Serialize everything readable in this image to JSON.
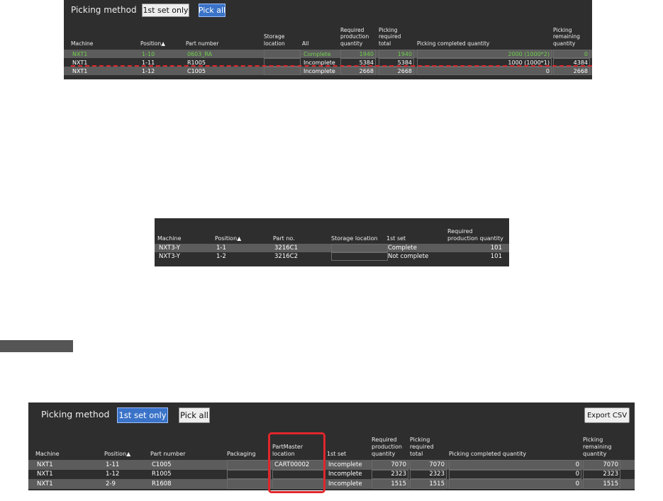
{
  "panels": [
    {
      "picking_method": "Picking method",
      "buttons": [
        "1st set only",
        "Pick all"
      ],
      "columns": [
        "Machine",
        "Position▲",
        "Part number",
        "Storage location",
        "All",
        "Required production quantity",
        "Picking required total",
        "Picking completed quantity",
        "Picking remaining quantity"
      ],
      "rows": [
        [
          "NXT1",
          "1-10",
          "0603_RA",
          null,
          "Complete",
          "1940",
          "1940",
          "2000 (1000*2)",
          "0"
        ],
        [
          "NXT1",
          "1-11",
          "R1005",
          null,
          "Incomplete",
          "5384",
          "5384",
          "1000 (1000*1)",
          "4384"
        ],
        [
          "NXT1",
          "1-12",
          "C1005",
          null,
          "Incomplete",
          "2668",
          "2668",
          "0",
          "2668"
        ]
      ]
    },
    {
      "columns": [
        "Machine",
        "Position▲",
        "Part no.",
        "Storage location",
        "1st set",
        "Required production quantity"
      ],
      "rows": [
        [
          "NXT3-Y",
          "1-1",
          "3216C1",
          null,
          "Complete",
          "101"
        ],
        [
          "NXT3-Y",
          "1-2",
          "3216C2",
          null,
          "Not complete",
          "101"
        ]
      ]
    },
    {
      "picking_method": "Picking method",
      "buttons": [
        "1st set only",
        "Pick all"
      ],
      "export_button": "Export CSV",
      "columns": [
        "Machine",
        "Position▲",
        "Part number",
        "Packaging",
        "PartMaster location",
        "1st set",
        "Required production quantity",
        "Picking required total",
        "Picking completed quantity",
        "Picking remaining quantity"
      ],
      "rows": [
        [
          "NXT1",
          "1-11",
          "C1005",
          null,
          "CART00002",
          "Incomplete",
          "7070",
          "7070",
          "0",
          "7070"
        ],
        [
          "NXT1",
          "1-12",
          "R1005",
          null,
          null,
          "Incomplete",
          "2323",
          "2323",
          "0",
          "2323"
        ],
        [
          "NXT1",
          "2-9",
          "R1608",
          null,
          null,
          "Incomplete",
          "1515",
          "1515",
          "0",
          "1515"
        ]
      ]
    }
  ]
}
